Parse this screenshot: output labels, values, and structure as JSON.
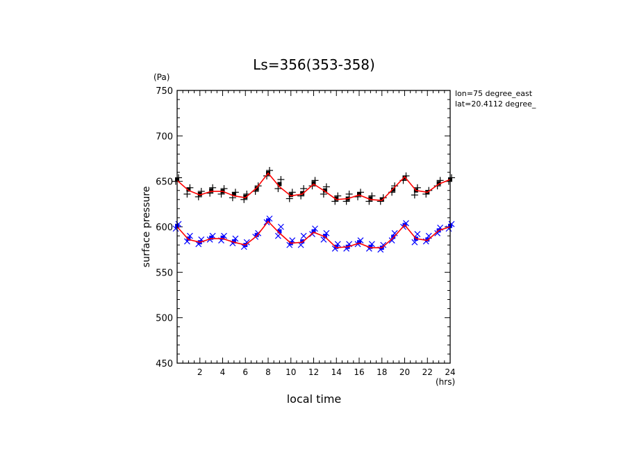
{
  "chart_data": {
    "type": "scatter",
    "title": "Ls=356(353-358)",
    "xlabel": "local time",
    "ylabel": "surface pressure",
    "x_unit": "(hrs)",
    "y_unit": "(Pa)",
    "xlim": [
      0,
      24
    ],
    "ylim": [
      450,
      750
    ],
    "x_ticks": [
      2,
      4,
      6,
      8,
      10,
      12,
      14,
      16,
      18,
      20,
      22,
      24
    ],
    "y_ticks": [
      450,
      500,
      550,
      600,
      650,
      700,
      750
    ],
    "annotations": [
      "lon=75 degree_east",
      "lat=20.4112 degree_"
    ],
    "colors": {
      "upper_markers": "#000000",
      "lower_markers": "#0000ff",
      "fit_line": "#ff0000"
    },
    "series": [
      {
        "marker": "square+plus",
        "color": "#000000",
        "x": [
          0,
          1,
          2,
          3,
          4,
          5,
          6,
          7,
          8,
          9,
          10,
          11,
          12,
          13,
          14,
          15,
          16,
          17,
          18,
          19,
          20,
          21,
          22,
          23,
          24
        ],
        "values": [
          652,
          641,
          636,
          640,
          639,
          636,
          633,
          642,
          659,
          647,
          635,
          637,
          648,
          640,
          631,
          631,
          636,
          631,
          630,
          641,
          654,
          640,
          638,
          648,
          652
        ],
        "spread": [
          [
            650,
            654
          ],
          [
            636,
            643
          ],
          [
            633,
            639
          ],
          [
            637,
            643
          ],
          [
            636,
            642
          ],
          [
            632,
            638
          ],
          [
            630,
            636
          ],
          [
            639,
            645
          ],
          [
            656,
            662
          ],
          [
            642,
            652
          ],
          [
            631,
            638
          ],
          [
            634,
            642
          ],
          [
            645,
            651
          ],
          [
            636,
            644
          ],
          [
            628,
            634
          ],
          [
            628,
            636
          ],
          [
            633,
            638
          ],
          [
            628,
            634
          ],
          [
            628,
            632
          ],
          [
            638,
            645
          ],
          [
            651,
            656
          ],
          [
            635,
            643
          ],
          [
            636,
            640
          ],
          [
            645,
            651
          ],
          [
            650,
            654
          ]
        ]
      },
      {
        "marker": "square+x",
        "color": "#0000ff",
        "x": [
          0,
          1,
          2,
          3,
          4,
          5,
          6,
          7,
          8,
          9,
          10,
          11,
          12,
          13,
          14,
          15,
          16,
          17,
          18,
          19,
          20,
          21,
          22,
          23,
          24
        ],
        "values": [
          601,
          587,
          583,
          588,
          588,
          584,
          580,
          591,
          607,
          595,
          582,
          584,
          595,
          590,
          578,
          578,
          583,
          578,
          577,
          589,
          602,
          587,
          586,
          596,
          601
        ],
        "spread": [
          [
            598,
            603
          ],
          [
            584,
            590
          ],
          [
            581,
            586
          ],
          [
            586,
            590
          ],
          [
            585,
            590
          ],
          [
            582,
            587
          ],
          [
            578,
            583
          ],
          [
            589,
            593
          ],
          [
            605,
            609
          ],
          [
            590,
            600
          ],
          [
            580,
            585
          ],
          [
            580,
            590
          ],
          [
            592,
            598
          ],
          [
            586,
            593
          ],
          [
            576,
            581
          ],
          [
            576,
            581
          ],
          [
            581,
            585
          ],
          [
            576,
            581
          ],
          [
            575,
            580
          ],
          [
            585,
            593
          ],
          [
            600,
            604
          ],
          [
            583,
            592
          ],
          [
            584,
            590
          ],
          [
            593,
            599
          ],
          [
            598,
            603
          ]
        ]
      },
      {
        "marker": "line",
        "color": "#ff0000",
        "x": [
          0,
          1,
          2,
          3,
          4,
          5,
          6,
          7,
          8,
          9,
          10,
          11,
          12,
          13,
          14,
          15,
          16,
          17,
          18,
          19,
          20,
          21,
          22,
          23,
          24
        ],
        "values": [
          651,
          640,
          635,
          639,
          639,
          634,
          632,
          643,
          659,
          644,
          634,
          636,
          647,
          639,
          630,
          631,
          635,
          630,
          629,
          642,
          655,
          640,
          638,
          647,
          652
        ]
      },
      {
        "marker": "line",
        "color": "#ff0000",
        "x": [
          0,
          1,
          2,
          3,
          4,
          5,
          6,
          7,
          8,
          9,
          10,
          11,
          12,
          13,
          14,
          15,
          16,
          17,
          18,
          19,
          20,
          21,
          22,
          23,
          24
        ],
        "values": [
          600,
          586,
          583,
          587,
          587,
          583,
          580,
          590,
          606,
          593,
          582,
          583,
          594,
          589,
          577,
          578,
          582,
          577,
          577,
          588,
          602,
          587,
          585,
          596,
          600
        ]
      }
    ]
  }
}
